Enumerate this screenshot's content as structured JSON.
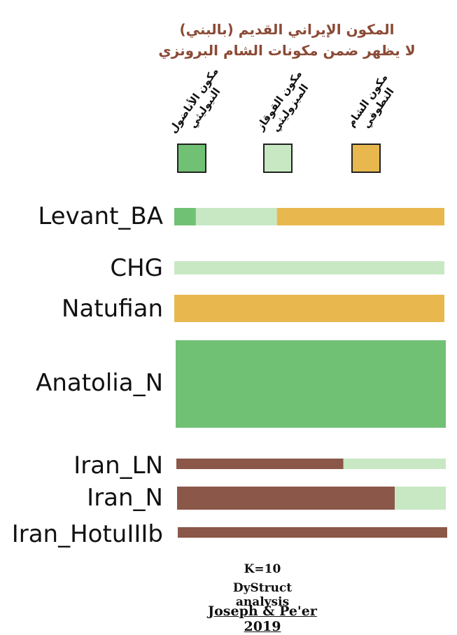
{
  "title": {
    "line1": "المكون الإيراني القديم (بالبني)",
    "line2": "لا يظهر ضمن مكونات الشام البرونزي"
  },
  "legend": [
    {
      "label": "مكون الأناضول النيوليثي",
      "color": "#70c174"
    },
    {
      "label": "مكون القوقاز الميزوليثي",
      "color": "#c8e8c4"
    },
    {
      "label": "مكون الشام النطوفي",
      "color": "#e8b84e"
    }
  ],
  "colors": {
    "anatolia": "#70c174",
    "caucasus": "#c8e8c4",
    "natufian": "#e8b84e",
    "iran": "#8b5748"
  },
  "chart_data": {
    "type": "bar",
    "categories": [
      "Levant_BA",
      "CHG",
      "Natufian",
      "Anatolia_N",
      "Iran_LN",
      "Iran_N",
      "Iran_HotuIIIb"
    ],
    "series": [
      {
        "values": [
          0.08,
          0.0,
          0.0,
          1.0,
          0.0,
          0.0,
          0.0
        ]
      },
      {
        "values": [
          0.3,
          1.0,
          0.0,
          0.0,
          0.38,
          0.19,
          0.0
        ]
      },
      {
        "values": [
          0.62,
          0.0,
          1.0,
          0.0,
          0.0,
          0.0,
          0.0
        ]
      },
      {
        "values": [
          0.0,
          0.0,
          0.0,
          0.0,
          0.62,
          0.81,
          1.0
        ]
      }
    ],
    "ylim": [
      0,
      1
    ]
  },
  "footer": {
    "k": "K=10",
    "method": "DyStruct analysis",
    "citation": "Joseph & Pe'er 2019"
  }
}
